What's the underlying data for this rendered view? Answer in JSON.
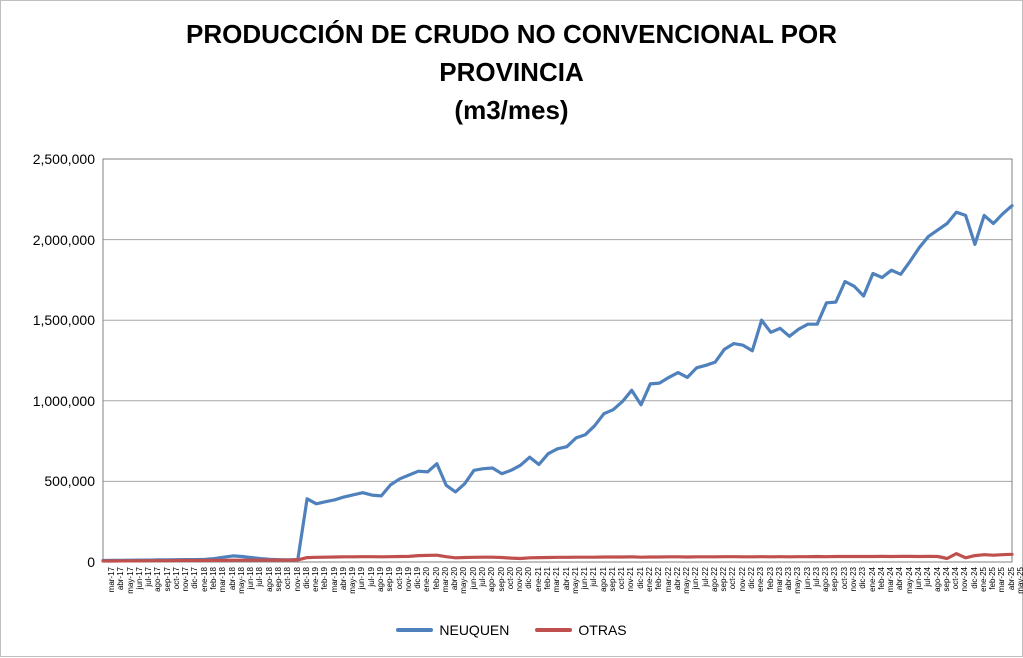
{
  "title_lines": [
    "PRODUCCIÓN DE CRUDO NO CONVENCIONAL POR",
    "PROVINCIA",
    "(m3/mes)"
  ],
  "chart_data": {
    "type": "line",
    "title": "PRODUCCIÓN DE CRUDO NO CONVENCIONAL POR PROVINCIA (m3/mes)",
    "xlabel": "",
    "ylabel": "",
    "ylim": [
      0,
      2500000
    ],
    "ytick_interval": 500000,
    "ytick_labels": [
      "0",
      "500,000",
      "1,000,000",
      "1,500,000",
      "2,000,000",
      "2,500,000"
    ],
    "grid": true,
    "legend_position": "bottom",
    "grid_color": "#a6a6a6",
    "plot_border_color": "#808080",
    "x": [
      "mar-17",
      "abr-17",
      "may-17",
      "jun-17",
      "jul-17",
      "ago-17",
      "sep-17",
      "oct-17",
      "nov-17",
      "dic-17",
      "ene-18",
      "feb-18",
      "mar-18",
      "abr-18",
      "may-18",
      "jun-18",
      "jul-18",
      "ago-18",
      "sep-18",
      "oct-18",
      "nov-18",
      "dic-18",
      "ene-19",
      "feb-19",
      "mar-19",
      "abr-19",
      "may-19",
      "jun-19",
      "jul-19",
      "ago-19",
      "sep-19",
      "oct-19",
      "nov-19",
      "dic-19",
      "ene-20",
      "feb-20",
      "mar-20",
      "abr-20",
      "may-20",
      "jun-20",
      "jul-20",
      "ago-20",
      "sep-20",
      "oct-20",
      "nov-20",
      "dic-20",
      "ene-21",
      "feb-21",
      "mar-21",
      "abr-21",
      "may-21",
      "jun-21",
      "jul-21",
      "ago-21",
      "sep-21",
      "oct-21",
      "nov-21",
      "dic-21",
      "ene-22",
      "feb-22",
      "mar-22",
      "abr-22",
      "may-22",
      "jun-22",
      "jul-22",
      "ago-22",
      "sep-22",
      "oct-22",
      "nov-22",
      "dic-22",
      "ene-23",
      "feb-23",
      "mar-23",
      "abr-23",
      "may-23",
      "jun-23",
      "jul-23",
      "ago-23",
      "sep-23",
      "oct-23",
      "nov-23",
      "dic-23",
      "ene-24",
      "feb-24",
      "mar-24",
      "abr-24",
      "may-24",
      "jun-24",
      "jul-24",
      "ago-24",
      "sep-24",
      "oct-24",
      "nov-24",
      "dic-24",
      "ene-25",
      "feb-25",
      "mar-25",
      "abr-25",
      "may-25"
    ],
    "series": [
      {
        "name": "NEUQUEN",
        "color": "#4F81BD",
        "values": [
          9000,
          10000,
          10000,
          11000,
          12000,
          12000,
          13000,
          13000,
          14000,
          15000,
          15000,
          17000,
          21000,
          30000,
          38000,
          34000,
          27000,
          21000,
          17000,
          14000,
          13000,
          15000,
          392000,
          361000,
          374000,
          386000,
          404000,
          417000,
          430000,
          415000,
          410000,
          478000,
          516000,
          540000,
          563000,
          559000,
          610000,
          476000,
          435000,
          486000,
          569000,
          579000,
          583000,
          548000,
          569000,
          600000,
          650000,
          605000,
          672000,
          702000,
          715000,
          770000,
          790000,
          845000,
          920000,
          945000,
          995000,
          1065000,
          975000,
          1105000,
          1110000,
          1145000,
          1175000,
          1145000,
          1205000,
          1220000,
          1240000,
          1320000,
          1355000,
          1345000,
          1310000,
          1500000,
          1425000,
          1450000,
          1400000,
          1445000,
          1475000,
          1475000,
          1608000,
          1612000,
          1740000,
          1710000,
          1650000,
          1790000,
          1765000,
          1810000,
          1785000,
          1865000,
          1950000,
          2020000,
          2060000,
          2100000,
          2170000,
          2150000,
          1970000,
          2150000,
          2100000,
          2160000,
          2210000
        ]
      },
      {
        "name": "OTRAS",
        "color": "#C0504D",
        "values": [
          6000,
          6000,
          7000,
          7000,
          7000,
          8000,
          8000,
          8000,
          9000,
          9000,
          9000,
          9000,
          10000,
          10000,
          11000,
          11000,
          11000,
          12000,
          12000,
          12000,
          12000,
          13000,
          27000,
          29000,
          30000,
          31000,
          32000,
          32000,
          33000,
          33000,
          32000,
          33000,
          34000,
          35000,
          40000,
          41000,
          42000,
          33000,
          26000,
          28000,
          29000,
          30000,
          30000,
          28000,
          24000,
          22000,
          26000,
          27000,
          28000,
          29000,
          29000,
          30000,
          30000,
          30000,
          31000,
          31000,
          31000,
          32000,
          30000,
          31000,
          31000,
          32000,
          32000,
          31000,
          32000,
          32000,
          32000,
          33000,
          33000,
          32000,
          32000,
          33000,
          32000,
          33000,
          32000,
          33000,
          33000,
          34000,
          33000,
          34000,
          34000,
          34000,
          34000,
          34000,
          35000,
          34000,
          35000,
          35000,
          34000,
          35000,
          34000,
          22000,
          52000,
          26000,
          40000,
          45000,
          42000,
          45000,
          48000
        ]
      }
    ]
  }
}
